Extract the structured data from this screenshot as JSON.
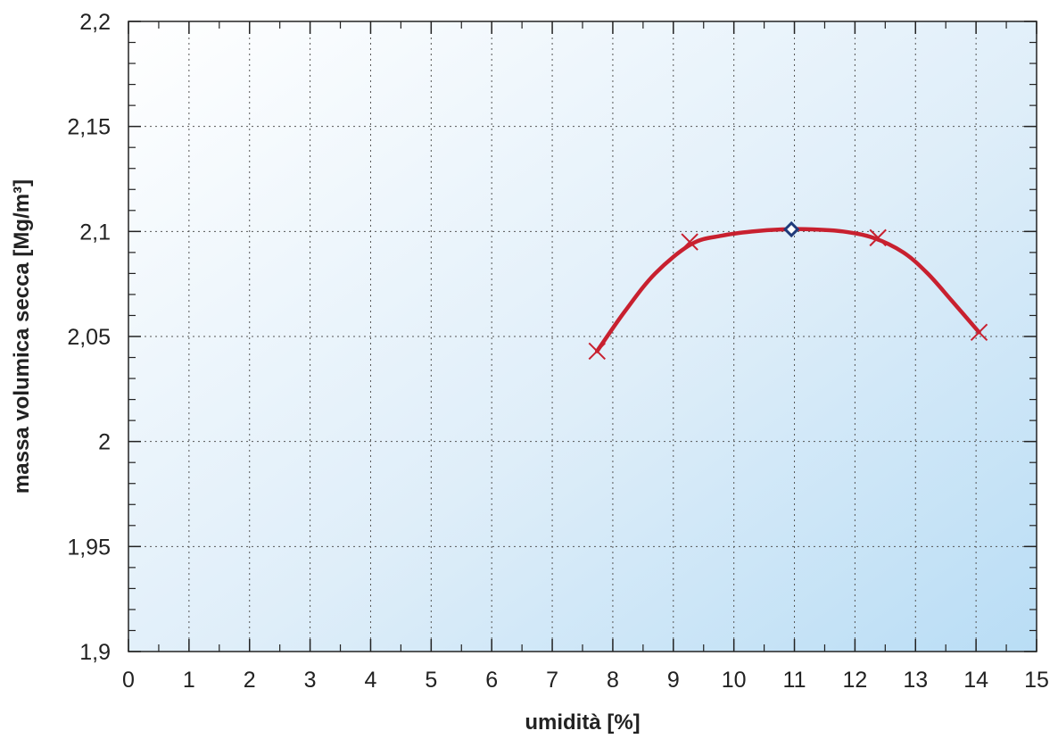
{
  "chart_data": {
    "type": "line",
    "xlabel": "umidità [%]",
    "ylabel": "massa volumica secca  [Mg/m³]",
    "xlim": [
      0,
      15
    ],
    "ylim": [
      1.9,
      2.2
    ],
    "x_ticks": [
      0,
      1,
      2,
      3,
      4,
      5,
      6,
      7,
      8,
      9,
      10,
      11,
      12,
      13,
      14,
      15
    ],
    "y_ticks": [
      1.9,
      1.95,
      2,
      2.05,
      2.1,
      2.15,
      2.2
    ],
    "x_tick_labels": [
      "0",
      "1",
      "2",
      "3",
      "4",
      "5",
      "6",
      "7",
      "8",
      "9",
      "10",
      "11",
      "12",
      "13",
      "14",
      "15"
    ],
    "y_tick_labels": [
      "1,9",
      "1,95",
      "2",
      "2,05",
      "2,1",
      "2,15",
      "2,2"
    ],
    "grid": true,
    "series": [
      {
        "type": "line",
        "color": "#c8202f",
        "x": [
          7.74,
          8.2,
          8.7,
          9.3,
          9.8,
          10.3,
          10.8,
          11.3,
          11.8,
          12.3,
          12.8,
          13.2,
          13.6,
          14.05
        ],
        "y": [
          2.043,
          2.062,
          2.08,
          2.094,
          2.098,
          2.1,
          2.101,
          2.101,
          2.1,
          2.097,
          2.09,
          2.08,
          2.067,
          2.052
        ]
      },
      {
        "type": "scatter",
        "marker": "x",
        "color": "#c8202f",
        "x": [
          7.74,
          9.27,
          12.38,
          14.05
        ],
        "y": [
          2.043,
          2.095,
          2.097,
          2.052
        ]
      },
      {
        "type": "scatter",
        "marker": "diamond",
        "color": "#1f3a7a",
        "x": [
          10.95
        ],
        "y": [
          2.101
        ]
      }
    ]
  }
}
